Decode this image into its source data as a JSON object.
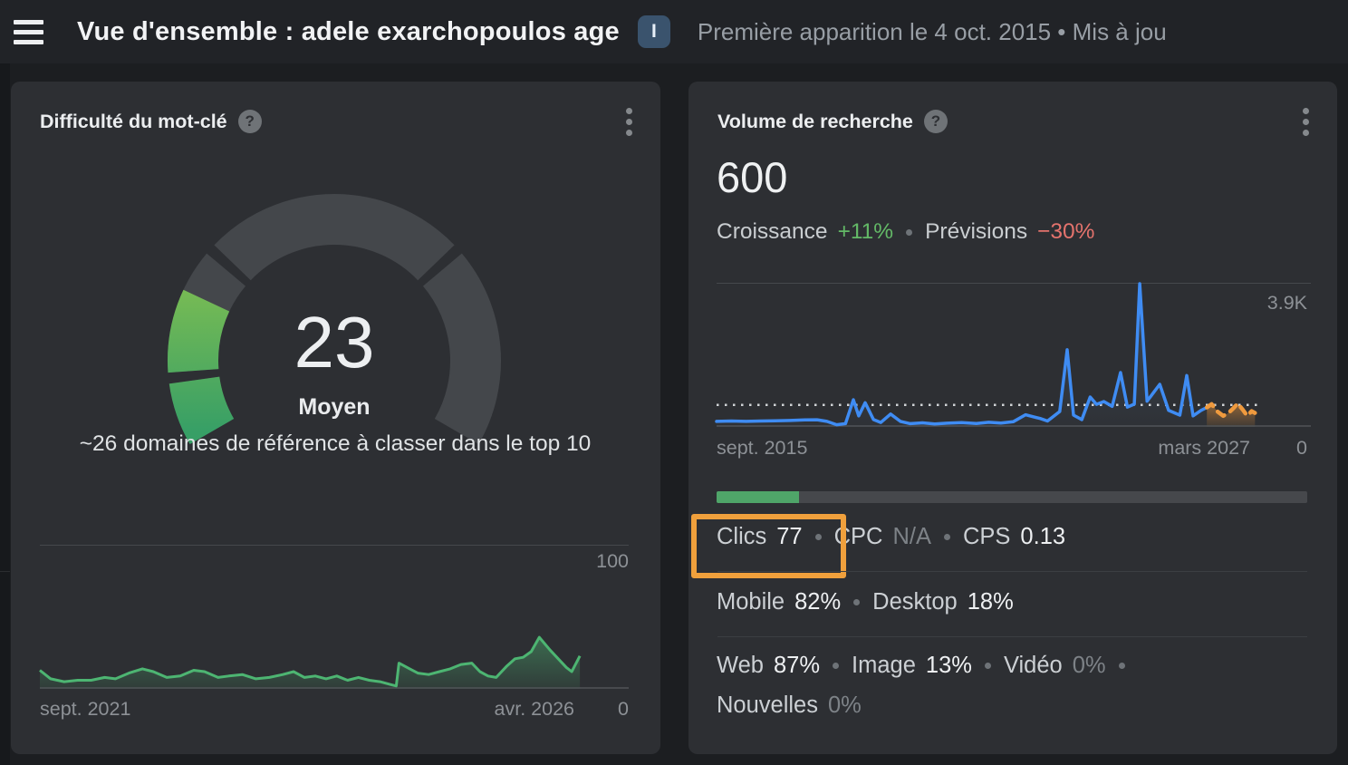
{
  "topbar": {
    "title": "Vue d'ensemble : adele exarchopoulos age",
    "badge": "I",
    "meta": "Première apparition le 4 oct. 2015  •  Mis à jou"
  },
  "icons": {
    "help_glyph": "?"
  },
  "kd_card": {
    "title": "Difficulté du mot-clé",
    "value": "23",
    "level": "Moyen",
    "description": "~26 domaines de référence à classer dans le top 10",
    "y_max": "100",
    "y_min": "0",
    "x_start": "sept. 2021",
    "x_end": "avr. 2026"
  },
  "volume_card": {
    "title": "Volume de recherche",
    "value": "600",
    "growth_label": "Croissance",
    "growth_value": "+11%",
    "forecast_label": "Prévisions",
    "forecast_value": "−30%",
    "y_max": "3.9K",
    "y_min": "0",
    "x_start": "sept. 2015",
    "x_end": "mars 2027",
    "clicks_bar_pct": 14,
    "stats_row1": [
      {
        "label": "Clics",
        "value": "77"
      },
      {
        "label": "CPC",
        "value": "N/A",
        "dim": true
      },
      {
        "label": "CPS",
        "value": "0.13"
      }
    ],
    "row2": [
      {
        "label": "Mobile",
        "value": "82%"
      },
      {
        "label": "Desktop",
        "value": "18%"
      }
    ],
    "row3": [
      {
        "label": "Web",
        "value": "87%"
      },
      {
        "label": "Image",
        "value": "13%"
      },
      {
        "label": "Vidéo",
        "value": "0%",
        "dim": true
      },
      {
        "label": "Nouvelles",
        "value": "0%",
        "dim": true
      }
    ]
  },
  "chart_data": [
    {
      "type": "gauge",
      "title": "Difficulté du mot-clé",
      "value": 23,
      "max": 100,
      "label": "Moyen",
      "segments": [
        [
          0,
          10
        ],
        [
          10,
          30
        ],
        [
          30,
          70
        ],
        [
          70,
          100
        ]
      ],
      "filled_segments": [
        [
          0,
          10
        ],
        [
          10,
          23
        ]
      ],
      "track_color": "#44474b",
      "fill_gradient": [
        "#97c94b",
        "#379f66"
      ],
      "start_angle": 210,
      "sweep": 240
    },
    {
      "type": "area",
      "title": "Historique de la difficulté du mot-clé",
      "xlabel_start": "sept. 2021",
      "xlabel_end": "avr. 2026",
      "ylim": [
        0,
        100
      ],
      "line_color": "#4db572",
      "data_span": 0.917,
      "points": [
        [
          0,
          13
        ],
        [
          0.02,
          7
        ],
        [
          0.045,
          5
        ],
        [
          0.07,
          6
        ],
        [
          0.095,
          6
        ],
        [
          0.12,
          8
        ],
        [
          0.14,
          7
        ],
        [
          0.165,
          11
        ],
        [
          0.19,
          14
        ],
        [
          0.21,
          12
        ],
        [
          0.235,
          8
        ],
        [
          0.26,
          9
        ],
        [
          0.285,
          13
        ],
        [
          0.305,
          12
        ],
        [
          0.33,
          8
        ],
        [
          0.35,
          9
        ],
        [
          0.375,
          10
        ],
        [
          0.4,
          7
        ],
        [
          0.425,
          8
        ],
        [
          0.45,
          10
        ],
        [
          0.47,
          12
        ],
        [
          0.49,
          8
        ],
        [
          0.51,
          9
        ],
        [
          0.53,
          7
        ],
        [
          0.55,
          9
        ],
        [
          0.57,
          6
        ],
        [
          0.59,
          8
        ],
        [
          0.61,
          6
        ],
        [
          0.63,
          5
        ],
        [
          0.65,
          3
        ],
        [
          0.66,
          2
        ],
        [
          0.665,
          18
        ],
        [
          0.685,
          14
        ],
        [
          0.7,
          11
        ],
        [
          0.72,
          10
        ],
        [
          0.74,
          12
        ],
        [
          0.76,
          14
        ],
        [
          0.78,
          17
        ],
        [
          0.8,
          18
        ],
        [
          0.815,
          12
        ],
        [
          0.83,
          9
        ],
        [
          0.845,
          8
        ],
        [
          0.865,
          16
        ],
        [
          0.88,
          21
        ],
        [
          0.895,
          22
        ],
        [
          0.91,
          26
        ],
        [
          0.925,
          36
        ],
        [
          0.945,
          27
        ],
        [
          0.96,
          21
        ],
        [
          0.975,
          15
        ],
        [
          0.985,
          12
        ],
        [
          1,
          23
        ]
      ]
    },
    {
      "type": "line",
      "title": "Historique du volume de recherche",
      "xlabel_start": "sept. 2015",
      "xlabel_end": "mars 2027",
      "ylim": [
        0,
        3900
      ],
      "reference_value": 600,
      "line_color": "#3f8cf3",
      "forecast_color": "#ef9a3e",
      "history_span": 0.825,
      "forecast_span": 0.906,
      "reference_span": 0.913,
      "history": [
        [
          0,
          150
        ],
        [
          0.03,
          160
        ],
        [
          0.06,
          150
        ],
        [
          0.09,
          160
        ],
        [
          0.12,
          165
        ],
        [
          0.15,
          175
        ],
        [
          0.18,
          190
        ],
        [
          0.205,
          195
        ],
        [
          0.225,
          150
        ],
        [
          0.245,
          60
        ],
        [
          0.263,
          90
        ],
        [
          0.279,
          740
        ],
        [
          0.29,
          300
        ],
        [
          0.303,
          660
        ],
        [
          0.32,
          200
        ],
        [
          0.335,
          120
        ],
        [
          0.355,
          350
        ],
        [
          0.375,
          150
        ],
        [
          0.395,
          90
        ],
        [
          0.42,
          110
        ],
        [
          0.445,
          80
        ],
        [
          0.47,
          100
        ],
        [
          0.5,
          115
        ],
        [
          0.53,
          95
        ],
        [
          0.555,
          125
        ],
        [
          0.58,
          105
        ],
        [
          0.605,
          140
        ],
        [
          0.63,
          330
        ],
        [
          0.645,
          280
        ],
        [
          0.66,
          230
        ],
        [
          0.675,
          160
        ],
        [
          0.7,
          420
        ],
        [
          0.715,
          2100
        ],
        [
          0.728,
          320
        ],
        [
          0.745,
          200
        ],
        [
          0.762,
          815
        ],
        [
          0.775,
          615
        ],
        [
          0.79,
          690
        ],
        [
          0.807,
          560
        ],
        [
          0.824,
          1480
        ],
        [
          0.838,
          540
        ],
        [
          0.852,
          620
        ],
        [
          0.863,
          3900
        ],
        [
          0.878,
          700
        ],
        [
          0.904,
          1160
        ],
        [
          0.922,
          450
        ],
        [
          0.945,
          320
        ],
        [
          0.959,
          1400
        ],
        [
          0.972,
          300
        ],
        [
          0.988,
          450
        ],
        [
          1,
          530
        ]
      ],
      "forecast": [
        [
          0,
          530
        ],
        [
          0.1,
          620
        ],
        [
          0.22,
          420
        ],
        [
          0.34,
          300
        ],
        [
          0.45,
          380
        ],
        [
          0.56,
          520
        ],
        [
          0.64,
          640
        ],
        [
          0.74,
          480
        ],
        [
          0.84,
          300
        ],
        [
          0.93,
          430
        ],
        [
          1,
          380
        ]
      ]
    }
  ]
}
